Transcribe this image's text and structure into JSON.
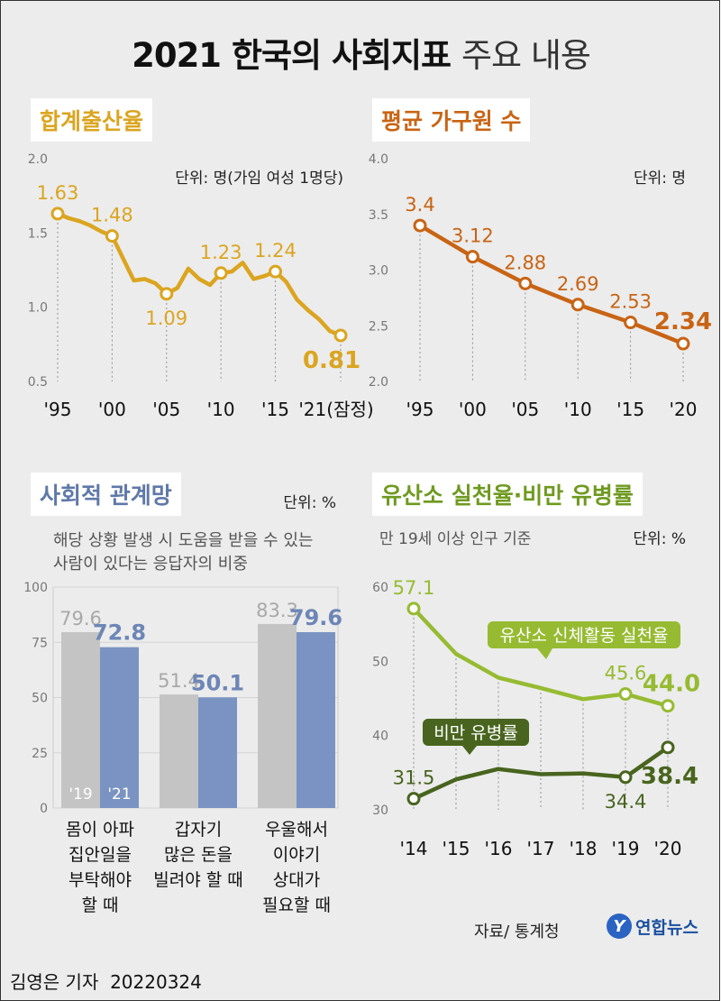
{
  "title": {
    "bold": "2021 한국의 사회지표",
    "light": "주요 내용"
  },
  "footer": {
    "author": "김영은 기자",
    "date": "20220324",
    "source": "자료/ 통계청",
    "logo": "연합뉴스",
    "logo_mark": "Y"
  },
  "colors": {
    "tfr": "#dba520",
    "household": "#c86414",
    "social_gray": "#c4c4c4",
    "social_blue": "#7a93c2",
    "activity": "#96bb32",
    "obesity": "#48641e",
    "grid": "#909090"
  },
  "chart_data": [
    {
      "type": "line",
      "title": "합계출산율",
      "unit": "단위: 명(가임 여성 1명당)",
      "xlabels": [
        "'95",
        "'00",
        "'05",
        "'10",
        "'15",
        "'21(잠정)"
      ],
      "x": [
        1995,
        1996,
        1997,
        1998,
        1999,
        2000,
        2001,
        2002,
        2003,
        2004,
        2005,
        2006,
        2007,
        2008,
        2009,
        2010,
        2011,
        2012,
        2013,
        2014,
        2015,
        2016,
        2017,
        2018,
        2019,
        2020,
        2021
      ],
      "values": [
        1.63,
        1.6,
        1.58,
        1.55,
        1.51,
        1.48,
        1.33,
        1.18,
        1.19,
        1.16,
        1.09,
        1.13,
        1.26,
        1.19,
        1.15,
        1.23,
        1.24,
        1.3,
        1.19,
        1.21,
        1.24,
        1.17,
        1.05,
        0.98,
        0.92,
        0.84,
        0.81
      ],
      "ylim": [
        0.5,
        2.0
      ],
      "yticks": [
        "0.5",
        "1.0",
        "1.5",
        "2.0"
      ],
      "labels": [
        {
          "x": 1995,
          "text": "1.63",
          "pos": "above"
        },
        {
          "x": 2000,
          "text": "1.48",
          "pos": "above"
        },
        {
          "x": 2005,
          "text": "1.09",
          "pos": "below"
        },
        {
          "x": 2010,
          "text": "1.23",
          "pos": "above"
        },
        {
          "x": 2015,
          "text": "1.24",
          "pos": "above"
        },
        {
          "x": 2021,
          "text": "0.81",
          "pos": "below-left",
          "bold": true
        }
      ]
    },
    {
      "type": "line",
      "title": "평균 가구원 수",
      "unit": "단위: 명",
      "xlabels": [
        "'95",
        "'00",
        "'05",
        "'10",
        "'15",
        "'20"
      ],
      "x": [
        1995,
        2000,
        2005,
        2010,
        2015,
        2020
      ],
      "values": [
        3.4,
        3.12,
        2.88,
        2.69,
        2.53,
        2.34
      ],
      "ylim": [
        2.0,
        4.0
      ],
      "yticks": [
        "2.0",
        "2.5",
        "3.0",
        "3.5",
        "4.0"
      ],
      "labels": [
        {
          "x": 1995,
          "text": "3.4",
          "pos": "above"
        },
        {
          "x": 2000,
          "text": "3.12",
          "pos": "above"
        },
        {
          "x": 2005,
          "text": "2.88",
          "pos": "above"
        },
        {
          "x": 2010,
          "text": "2.69",
          "pos": "above"
        },
        {
          "x": 2015,
          "text": "2.53",
          "pos": "above"
        },
        {
          "x": 2020,
          "text": "2.34",
          "pos": "above",
          "bold": true
        }
      ]
    },
    {
      "type": "bar",
      "title": "사회적 관계망",
      "unit": "단위: %",
      "subtitle": [
        "해당 상황 발생 시 도움을 받을 수 있는",
        "사람이 있다는 응답자의 비중"
      ],
      "series": [
        {
          "name": "'19",
          "values": [
            79.6,
            51.4,
            83.3
          ]
        },
        {
          "name": "'21",
          "values": [
            72.8,
            50.1,
            79.6
          ]
        }
      ],
      "categories": [
        [
          "몸이 아파",
          "집안일을",
          "부탁해야",
          "할 때"
        ],
        [
          "갑자기",
          "많은 돈을",
          "빌려야 할 때"
        ],
        [
          "우울해서",
          "이야기",
          "상대가",
          "필요할 때"
        ]
      ],
      "ylim": [
        0,
        100
      ],
      "yticks": [
        "0",
        "25",
        "50",
        "75",
        "100"
      ]
    },
    {
      "type": "line",
      "title": "유산소 실천율·비만 유병률",
      "unit": "단위: %",
      "subtitle": "만 19세 이상 인구 기준",
      "xlabels": [
        "'14",
        "'15",
        "'16",
        "'17",
        "'18",
        "'19",
        "'20"
      ],
      "x": [
        2014,
        2015,
        2016,
        2017,
        2018,
        2019,
        2020
      ],
      "ylim": [
        30,
        60
      ],
      "yticks": [
        "30",
        "40",
        "50",
        "60"
      ],
      "series": [
        {
          "name": "유산소 신체활동 실천율",
          "values": [
            57.1,
            51.0,
            47.8,
            46.4,
            44.9,
            45.6,
            44.0
          ],
          "labels": [
            {
              "x": 2014,
              "text": "57.1"
            },
            {
              "x": 2019,
              "text": "45.6"
            },
            {
              "x": 2020,
              "text": "44.0",
              "bold": true
            }
          ]
        },
        {
          "name": "비만 유병률",
          "values": [
            31.5,
            34.1,
            35.5,
            34.8,
            34.9,
            34.4,
            38.4
          ],
          "labels": [
            {
              "x": 2014,
              "text": "31.5"
            },
            {
              "x": 2019,
              "text": "34.4"
            },
            {
              "x": 2020,
              "text": "38.4",
              "bold": true
            }
          ]
        }
      ]
    }
  ]
}
